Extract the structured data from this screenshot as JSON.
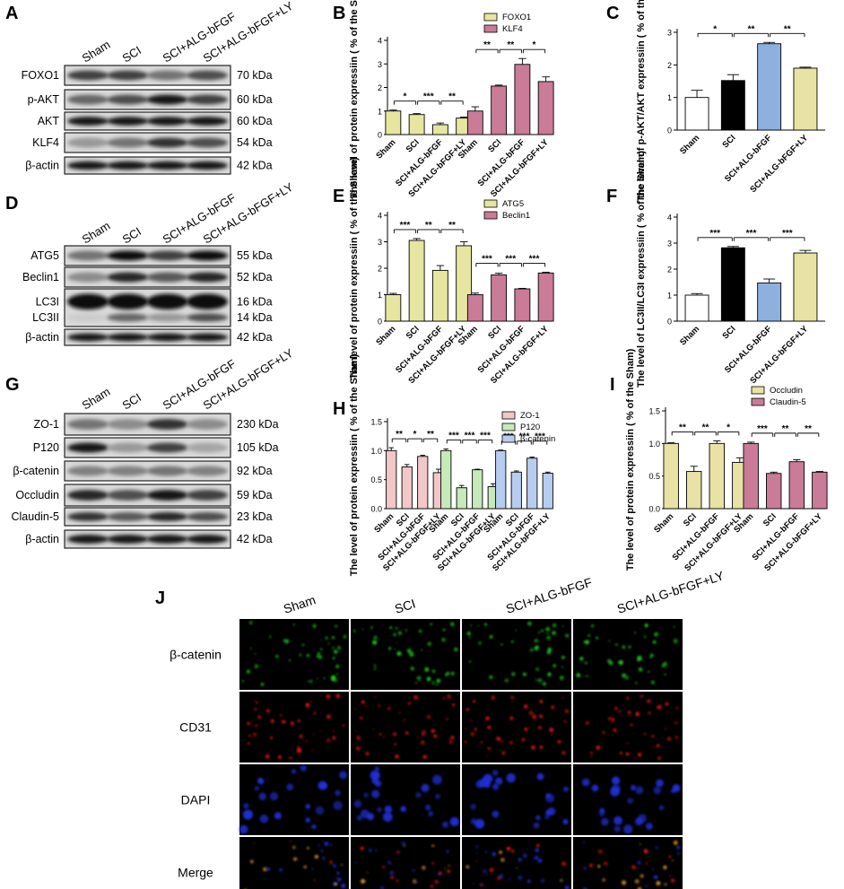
{
  "panels": {
    "A": {
      "letter": "A",
      "groups": [
        "Sham",
        "SCI",
        "SCI+ALG-bFGF",
        "SCI+ALG-bFGF+LY"
      ],
      "blots": [
        {
          "name": "FOXO1",
          "size": "70 kDa"
        },
        {
          "name": "p-AKT",
          "size": "60 kDa"
        },
        {
          "name": "AKT",
          "size": "60 kDa"
        },
        {
          "name": "KLF4",
          "size": "54 kDa"
        },
        {
          "name": "β-actin",
          "size": "42 kDa"
        }
      ]
    },
    "D": {
      "letter": "D",
      "groups": [
        "Sham",
        "SCI",
        "SCI+ALG-bFGF",
        "SCI+ALG-bFGF+LY"
      ],
      "blots": [
        {
          "name": "ATG5",
          "size": "55 kDa"
        },
        {
          "name": "Beclin1",
          "size": "52 kDa"
        },
        {
          "name": "LC3I",
          "size": "16 kDa"
        },
        {
          "name": "LC3II",
          "size": "14 kDa"
        },
        {
          "name": "β-actin",
          "size": "42 kDa"
        }
      ]
    },
    "G": {
      "letter": "G",
      "groups": [
        "Sham",
        "SCI",
        "SCI+ALG-bFGF",
        "SCI+ALG-bFGF+LY"
      ],
      "blots": [
        {
          "name": "ZO-1",
          "size": "230 kDa"
        },
        {
          "name": "P120",
          "size": "105 kDa"
        },
        {
          "name": "β-catenin",
          "size": "92 kDa"
        },
        {
          "name": "Occludin",
          "size": "59 kDa"
        },
        {
          "name": "Claudin-5",
          "size": "23 kDa"
        },
        {
          "name": "β-actin",
          "size": "42 kDa"
        }
      ]
    },
    "J": {
      "letter": "J",
      "columns": [
        "Sham",
        "SCI",
        "SCI+ALG-bFGF",
        "SCI+ALG-bFGF+LY"
      ],
      "rows": [
        "β-catenin",
        "CD31",
        "DAPI",
        "Merge"
      ]
    }
  },
  "colors": {
    "green_band": "#e6e6a0",
    "pink_band": "#c97b97",
    "zo1": "#f2c7c7",
    "p120": "#c6eab9",
    "bcat": "#b7cdf0",
    "black": "#000000",
    "blue": "#8eb0de",
    "olive": "#e8e2a4",
    "fluor_green": "#22cc22",
    "fluor_red": "#e01818",
    "fluor_blue": "#2233dd",
    "fluor_orange": "#f0a020"
  },
  "chart_data": [
    {
      "panel": "B",
      "type": "bar",
      "ylabel": "The level of protein expressiin ( % of the Sham)",
      "ylim": [
        0,
        4
      ],
      "yticks": [
        0,
        1,
        2,
        3,
        4
      ],
      "categories": [
        "Sham",
        "SCI",
        "SCI+ALG-bFGF",
        "SCI+ALG-bFGF+LY"
      ],
      "series": [
        {
          "name": "FOXO1",
          "values": [
            1.0,
            0.85,
            0.42,
            0.7
          ],
          "errors": [
            0.04,
            0.04,
            0.07,
            0.04
          ]
        },
        {
          "name": "KLF4",
          "values": [
            1.0,
            2.06,
            2.98,
            2.25
          ],
          "errors": [
            0.18,
            0.04,
            0.25,
            0.2
          ]
        }
      ],
      "annotations": [
        "*",
        "***",
        "**",
        "**",
        "**",
        "*"
      ],
      "legend": "top-right"
    },
    {
      "panel": "C",
      "type": "bar",
      "ylabel": "The level of p-AKT/AKT expressiin ( % of the Sham)",
      "ylim": [
        0,
        3
      ],
      "yticks": [
        0,
        1,
        2,
        3
      ],
      "categories": [
        "Sham",
        "SCI",
        "SCI+ALG-bFGF",
        "SCI+ALG-bFGF+LY"
      ],
      "values": [
        1.0,
        1.52,
        2.65,
        1.9
      ],
      "errors": [
        0.22,
        0.18,
        0.04,
        0.03
      ],
      "annotations": [
        "*",
        "**",
        "**"
      ]
    },
    {
      "panel": "E",
      "type": "bar",
      "ylabel": "The level of protein expressiin ( % of the Sham)",
      "ylim": [
        0,
        4
      ],
      "yticks": [
        0,
        1,
        2,
        3,
        4
      ],
      "categories": [
        "Sham",
        "SCI",
        "SCI+ALG-bFGF",
        "SCI+ALG-bFGF+LY"
      ],
      "series": [
        {
          "name": "ATG5",
          "values": [
            1.0,
            3.05,
            1.92,
            2.85
          ],
          "errors": [
            0.05,
            0.07,
            0.18,
            0.15
          ]
        },
        {
          "name": "Beclin1",
          "values": [
            1.0,
            1.75,
            1.22,
            1.82
          ],
          "errors": [
            0.06,
            0.06,
            0.02,
            0.03
          ]
        }
      ],
      "annotations": [
        "***",
        "**",
        "**",
        "***",
        "***",
        "***"
      ],
      "legend": "top-right"
    },
    {
      "panel": "F",
      "type": "bar",
      "ylabel": "The level of LC3II/LC3I expressiin ( % of the Sham)",
      "ylim": [
        0,
        4
      ],
      "yticks": [
        0,
        1,
        2,
        3,
        4
      ],
      "categories": [
        "Sham",
        "SCI",
        "SCI+ALG-bFGF",
        "SCI+ALG-bFGF+LY"
      ],
      "values": [
        1.0,
        2.82,
        1.47,
        2.62
      ],
      "errors": [
        0.06,
        0.05,
        0.15,
        0.1
      ],
      "annotations": [
        "***",
        "***",
        "***"
      ]
    },
    {
      "panel": "H",
      "type": "bar",
      "ylabel": "The level of protein expressiin ( % of the Sham)",
      "ylim": [
        0,
        1.5
      ],
      "yticks": [
        0.0,
        0.5,
        1.0,
        1.5
      ],
      "categories": [
        "Sham",
        "SCI",
        "SCI+ALG-bFGF",
        "SCI+ALG-bFGF+LY"
      ],
      "series": [
        {
          "name": "ZO-1",
          "values": [
            1.0,
            0.72,
            0.9,
            0.62
          ],
          "errors": [
            0.05,
            0.04,
            0.02,
            0.06
          ]
        },
        {
          "name": "P120",
          "values": [
            1.0,
            0.36,
            0.67,
            0.38
          ],
          "errors": [
            0.03,
            0.04,
            0.01,
            0.05
          ]
        },
        {
          "name": "β-catenin",
          "values": [
            1.0,
            0.63,
            0.87,
            0.61
          ],
          "errors": [
            0.01,
            0.02,
            0.02,
            0.02
          ]
        }
      ],
      "annotations": [
        "**",
        "*",
        "**",
        "***",
        "***",
        "***",
        "***",
        "***",
        "***"
      ],
      "legend": "top-right"
    },
    {
      "panel": "I",
      "type": "bar",
      "ylabel": "The level of protein expressiin ( % of the Sham)",
      "ylim": [
        0,
        1.5
      ],
      "yticks": [
        0.0,
        0.5,
        1.0,
        1.5
      ],
      "categories": [
        "Sham",
        "SCI",
        "SCI+ALG-bFGF",
        "SCI+ALG-bFGF+LY"
      ],
      "series": [
        {
          "name": "Occludin",
          "values": [
            1.0,
            0.57,
            1.0,
            0.71
          ],
          "errors": [
            0.01,
            0.08,
            0.04,
            0.07
          ]
        },
        {
          "name": "Claudin-5",
          "values": [
            1.0,
            0.54,
            0.72,
            0.56
          ],
          "errors": [
            0.02,
            0.02,
            0.03,
            0.01
          ]
        }
      ],
      "annotations": [
        "**",
        "**",
        "*",
        "***",
        "**",
        "**"
      ],
      "legend": "top-right"
    }
  ]
}
